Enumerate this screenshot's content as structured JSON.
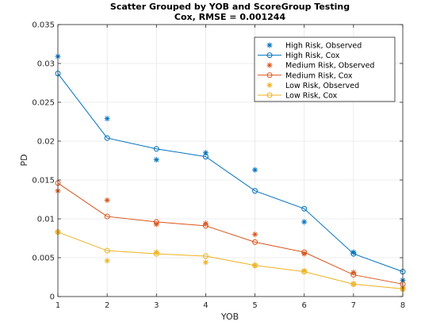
{
  "chart_data": {
    "type": "scatter",
    "title": "Scatter Grouped by YOB and ScoreGroup Testing",
    "subtitle": "Cox, RMSE = 0.001244",
    "xlabel": "YOB",
    "ylabel": "PD",
    "xlim": [
      1,
      8
    ],
    "ylim": [
      0,
      0.035
    ],
    "xticks": [
      "1",
      "2",
      "3",
      "4",
      "5",
      "6",
      "7",
      "8"
    ],
    "yticks": [
      "0",
      "0.005",
      "0.01",
      "0.015",
      "0.02",
      "0.025",
      "0.03",
      "0.035"
    ],
    "grid": true,
    "legend_position": "top-right",
    "x": [
      1,
      2,
      3,
      4,
      5,
      6,
      7,
      8
    ],
    "series": [
      {
        "name": "High Risk, Observed",
        "kind": "marker-star",
        "color": "#0072BD",
        "values": [
          0.0309,
          0.0229,
          0.0176,
          0.0185,
          0.0163,
          0.0096,
          0.0057,
          0.0021
        ]
      },
      {
        "name": "High Risk, Cox",
        "kind": "line-circle",
        "color": "#0072BD",
        "values": [
          0.0287,
          0.0204,
          0.019,
          0.018,
          0.0136,
          0.0113,
          0.0055,
          0.0032
        ]
      },
      {
        "name": "Medium Risk, Observed",
        "kind": "marker-star",
        "color": "#D95319",
        "values": [
          0.0136,
          0.0124,
          0.0093,
          0.0094,
          0.008,
          0.0055,
          0.0031,
          0.0011
        ]
      },
      {
        "name": "Medium Risk, Cox",
        "kind": "line-circle",
        "color": "#D95319",
        "values": [
          0.0146,
          0.0103,
          0.0096,
          0.0091,
          0.007,
          0.0057,
          0.0028,
          0.0016
        ]
      },
      {
        "name": "Low Risk, Observed",
        "kind": "marker-star",
        "color": "#EDB120",
        "values": [
          0.0083,
          0.0046,
          0.0057,
          0.0044,
          0.004,
          0.0033,
          0.0016,
          0.0009
        ]
      },
      {
        "name": "Low Risk, Cox",
        "kind": "line-circle",
        "color": "#EDB120",
        "values": [
          0.0083,
          0.0059,
          0.0055,
          0.0052,
          0.004,
          0.0032,
          0.0016,
          0.001
        ]
      }
    ]
  }
}
